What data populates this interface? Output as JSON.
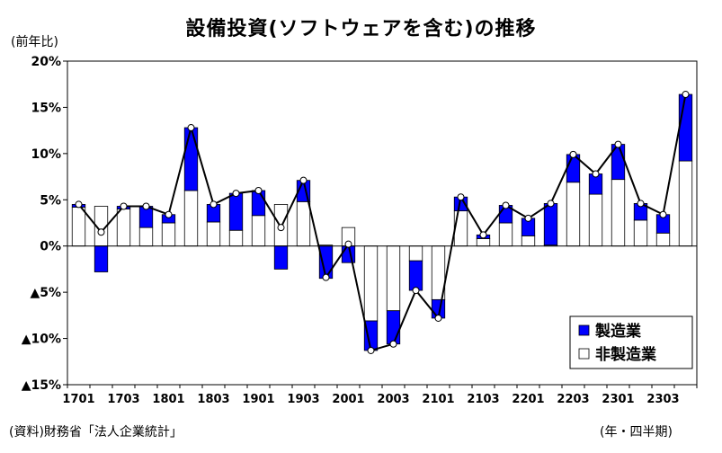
{
  "title": "設備投資(ソフトウェアを含む)の推移",
  "unit_label": "(前年比)",
  "source": "(資料)財務省「法人企業統計」",
  "period_label": "(年・四半期)",
  "colors": {
    "manufacturing": "#0000ff",
    "non_manufacturing": "#ffffff",
    "line": "#000000"
  },
  "chart_data": {
    "type": "bar",
    "stacked": true,
    "categories": [
      "1701",
      "1702",
      "1703",
      "1704",
      "1801",
      "1802",
      "1803",
      "1804",
      "1901",
      "1902",
      "1903",
      "1904",
      "2001",
      "2002",
      "2003",
      "2004",
      "2101",
      "2102",
      "2103",
      "2104",
      "2201",
      "2202",
      "2203",
      "2204",
      "2301",
      "2302",
      "2303",
      "2304"
    ],
    "xtick_labels": [
      "1701",
      "1703",
      "1801",
      "1803",
      "1901",
      "1903",
      "2001",
      "2003",
      "2101",
      "2103",
      "2201",
      "2203",
      "2301",
      "2303"
    ],
    "ylim": [
      -15,
      20
    ],
    "yticks": [
      20,
      15,
      10,
      5,
      0,
      -5,
      -10,
      -15
    ],
    "ytick_labels": [
      "20%",
      "15%",
      "10%",
      "5%",
      "0%",
      "▲5%",
      "▲10%",
      "▲15%"
    ],
    "legend_position": "bottom-right",
    "series": [
      {
        "name": "製造業",
        "type": "bar",
        "values": [
          0.3,
          -2.8,
          0.3,
          2.3,
          0.9,
          6.8,
          1.9,
          4.0,
          2.7,
          -2.5,
          2.3,
          -3.5,
          -1.8,
          -3.2,
          -3.6,
          -3.2,
          -2.0,
          1.5,
          0.4,
          1.9,
          1.9,
          4.5,
          3.0,
          2.2,
          3.8,
          1.8,
          2.0,
          7.2
        ]
      },
      {
        "name": "非製造業",
        "type": "bar",
        "values": [
          4.2,
          4.3,
          4.0,
          2.0,
          2.5,
          6.0,
          2.6,
          1.7,
          3.3,
          4.5,
          4.8,
          0.1,
          2.0,
          -8.1,
          -7.0,
          -1.6,
          -5.8,
          3.8,
          0.8,
          2.5,
          1.1,
          0.1,
          6.9,
          5.6,
          7.2,
          2.8,
          1.4,
          9.2
        ]
      },
      {
        "name": "",
        "type": "line",
        "values": [
          4.5,
          1.5,
          4.3,
          4.3,
          3.4,
          12.8,
          4.5,
          5.7,
          6.0,
          2.0,
          7.1,
          -3.4,
          0.2,
          -11.3,
          -10.6,
          -4.8,
          -7.8,
          5.3,
          1.2,
          4.4,
          3.0,
          4.6,
          9.9,
          7.8,
          11.0,
          4.6,
          3.4,
          16.4
        ]
      }
    ]
  }
}
